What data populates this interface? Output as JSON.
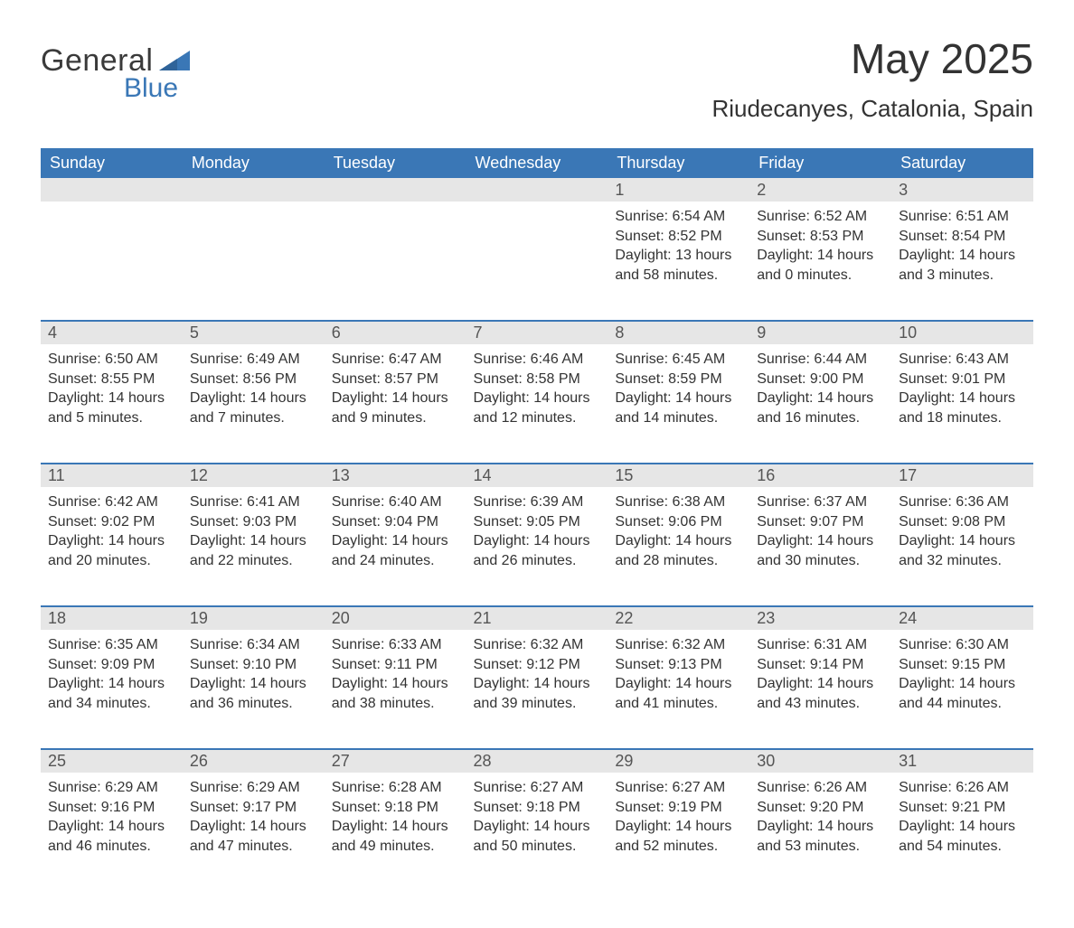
{
  "logo": {
    "word1": "General",
    "word2": "Blue",
    "triangle_color": "#3a77b6"
  },
  "title": "May 2025",
  "location": "Riudecanyes, Catalonia, Spain",
  "colors": {
    "header_bg": "#3a77b6",
    "header_text": "#ffffff",
    "daynum_bg": "#e6e6e6",
    "daynum_text": "#555555",
    "rule": "#3a77b6",
    "body_text": "#333333",
    "page_bg": "#ffffff"
  },
  "typography": {
    "title_fontsize": 46,
    "location_fontsize": 26,
    "dayheader_fontsize": 18,
    "daynum_fontsize": 18,
    "cell_fontsize": 16
  },
  "day_headers": [
    "Sunday",
    "Monday",
    "Tuesday",
    "Wednesday",
    "Thursday",
    "Friday",
    "Saturday"
  ],
  "weeks": [
    [
      null,
      null,
      null,
      null,
      {
        "n": "1",
        "sunrise": "6:54 AM",
        "sunset": "8:52 PM",
        "day_h": "13",
        "day_m": "58"
      },
      {
        "n": "2",
        "sunrise": "6:52 AM",
        "sunset": "8:53 PM",
        "day_h": "14",
        "day_m": "0"
      },
      {
        "n": "3",
        "sunrise": "6:51 AM",
        "sunset": "8:54 PM",
        "day_h": "14",
        "day_m": "3"
      }
    ],
    [
      {
        "n": "4",
        "sunrise": "6:50 AM",
        "sunset": "8:55 PM",
        "day_h": "14",
        "day_m": "5"
      },
      {
        "n": "5",
        "sunrise": "6:49 AM",
        "sunset": "8:56 PM",
        "day_h": "14",
        "day_m": "7"
      },
      {
        "n": "6",
        "sunrise": "6:47 AM",
        "sunset": "8:57 PM",
        "day_h": "14",
        "day_m": "9"
      },
      {
        "n": "7",
        "sunrise": "6:46 AM",
        "sunset": "8:58 PM",
        "day_h": "14",
        "day_m": "12"
      },
      {
        "n": "8",
        "sunrise": "6:45 AM",
        "sunset": "8:59 PM",
        "day_h": "14",
        "day_m": "14"
      },
      {
        "n": "9",
        "sunrise": "6:44 AM",
        "sunset": "9:00 PM",
        "day_h": "14",
        "day_m": "16"
      },
      {
        "n": "10",
        "sunrise": "6:43 AM",
        "sunset": "9:01 PM",
        "day_h": "14",
        "day_m": "18"
      }
    ],
    [
      {
        "n": "11",
        "sunrise": "6:42 AM",
        "sunset": "9:02 PM",
        "day_h": "14",
        "day_m": "20"
      },
      {
        "n": "12",
        "sunrise": "6:41 AM",
        "sunset": "9:03 PM",
        "day_h": "14",
        "day_m": "22"
      },
      {
        "n": "13",
        "sunrise": "6:40 AM",
        "sunset": "9:04 PM",
        "day_h": "14",
        "day_m": "24"
      },
      {
        "n": "14",
        "sunrise": "6:39 AM",
        "sunset": "9:05 PM",
        "day_h": "14",
        "day_m": "26"
      },
      {
        "n": "15",
        "sunrise": "6:38 AM",
        "sunset": "9:06 PM",
        "day_h": "14",
        "day_m": "28"
      },
      {
        "n": "16",
        "sunrise": "6:37 AM",
        "sunset": "9:07 PM",
        "day_h": "14",
        "day_m": "30"
      },
      {
        "n": "17",
        "sunrise": "6:36 AM",
        "sunset": "9:08 PM",
        "day_h": "14",
        "day_m": "32"
      }
    ],
    [
      {
        "n": "18",
        "sunrise": "6:35 AM",
        "sunset": "9:09 PM",
        "day_h": "14",
        "day_m": "34"
      },
      {
        "n": "19",
        "sunrise": "6:34 AM",
        "sunset": "9:10 PM",
        "day_h": "14",
        "day_m": "36"
      },
      {
        "n": "20",
        "sunrise": "6:33 AM",
        "sunset": "9:11 PM",
        "day_h": "14",
        "day_m": "38"
      },
      {
        "n": "21",
        "sunrise": "6:32 AM",
        "sunset": "9:12 PM",
        "day_h": "14",
        "day_m": "39"
      },
      {
        "n": "22",
        "sunrise": "6:32 AM",
        "sunset": "9:13 PM",
        "day_h": "14",
        "day_m": "41"
      },
      {
        "n": "23",
        "sunrise": "6:31 AM",
        "sunset": "9:14 PM",
        "day_h": "14",
        "day_m": "43"
      },
      {
        "n": "24",
        "sunrise": "6:30 AM",
        "sunset": "9:15 PM",
        "day_h": "14",
        "day_m": "44"
      }
    ],
    [
      {
        "n": "25",
        "sunrise": "6:29 AM",
        "sunset": "9:16 PM",
        "day_h": "14",
        "day_m": "46"
      },
      {
        "n": "26",
        "sunrise": "6:29 AM",
        "sunset": "9:17 PM",
        "day_h": "14",
        "day_m": "47"
      },
      {
        "n": "27",
        "sunrise": "6:28 AM",
        "sunset": "9:18 PM",
        "day_h": "14",
        "day_m": "49"
      },
      {
        "n": "28",
        "sunrise": "6:27 AM",
        "sunset": "9:18 PM",
        "day_h": "14",
        "day_m": "50"
      },
      {
        "n": "29",
        "sunrise": "6:27 AM",
        "sunset": "9:19 PM",
        "day_h": "14",
        "day_m": "52"
      },
      {
        "n": "30",
        "sunrise": "6:26 AM",
        "sunset": "9:20 PM",
        "day_h": "14",
        "day_m": "53"
      },
      {
        "n": "31",
        "sunrise": "6:26 AM",
        "sunset": "9:21 PM",
        "day_h": "14",
        "day_m": "54"
      }
    ]
  ],
  "labels": {
    "sunrise_prefix": "Sunrise: ",
    "sunset_prefix": "Sunset: ",
    "daylight_prefix": "Daylight: ",
    "hours_word": " hours",
    "and_word": "and ",
    "minutes_word": " minutes."
  }
}
